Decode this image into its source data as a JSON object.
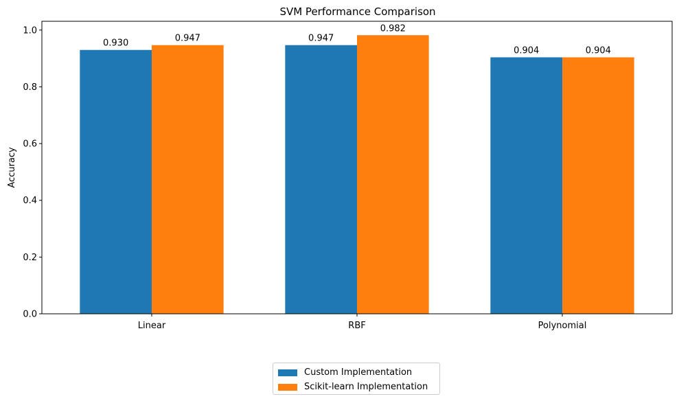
{
  "chart_data": {
    "type": "bar",
    "title": "SVM Performance Comparison",
    "xlabel": "",
    "ylabel": "Accuracy",
    "categories": [
      "Linear",
      "RBF",
      "Polynomial"
    ],
    "series": [
      {
        "name": "Custom Implementation",
        "values": [
          0.93,
          0.947,
          0.904
        ],
        "labels": [
          "0.930",
          "0.947",
          "0.904"
        ],
        "color": "#1f77b4"
      },
      {
        "name": "Scikit-learn Implementation",
        "values": [
          0.947,
          0.982,
          0.904
        ],
        "labels": [
          "0.947",
          "0.982",
          "0.904"
        ],
        "color": "#ff7f0e"
      }
    ],
    "ylim": [
      0,
      1.031
    ],
    "yticks": [
      {
        "value": 0.0,
        "label": "0.0"
      },
      {
        "value": 0.2,
        "label": "0.2"
      },
      {
        "value": 0.4,
        "label": "0.4"
      },
      {
        "value": 0.6,
        "label": "0.6"
      },
      {
        "value": 0.8,
        "label": "0.8"
      },
      {
        "value": 1.0,
        "label": "1.0"
      }
    ],
    "grid": false,
    "legend_position": "bottom-center"
  }
}
